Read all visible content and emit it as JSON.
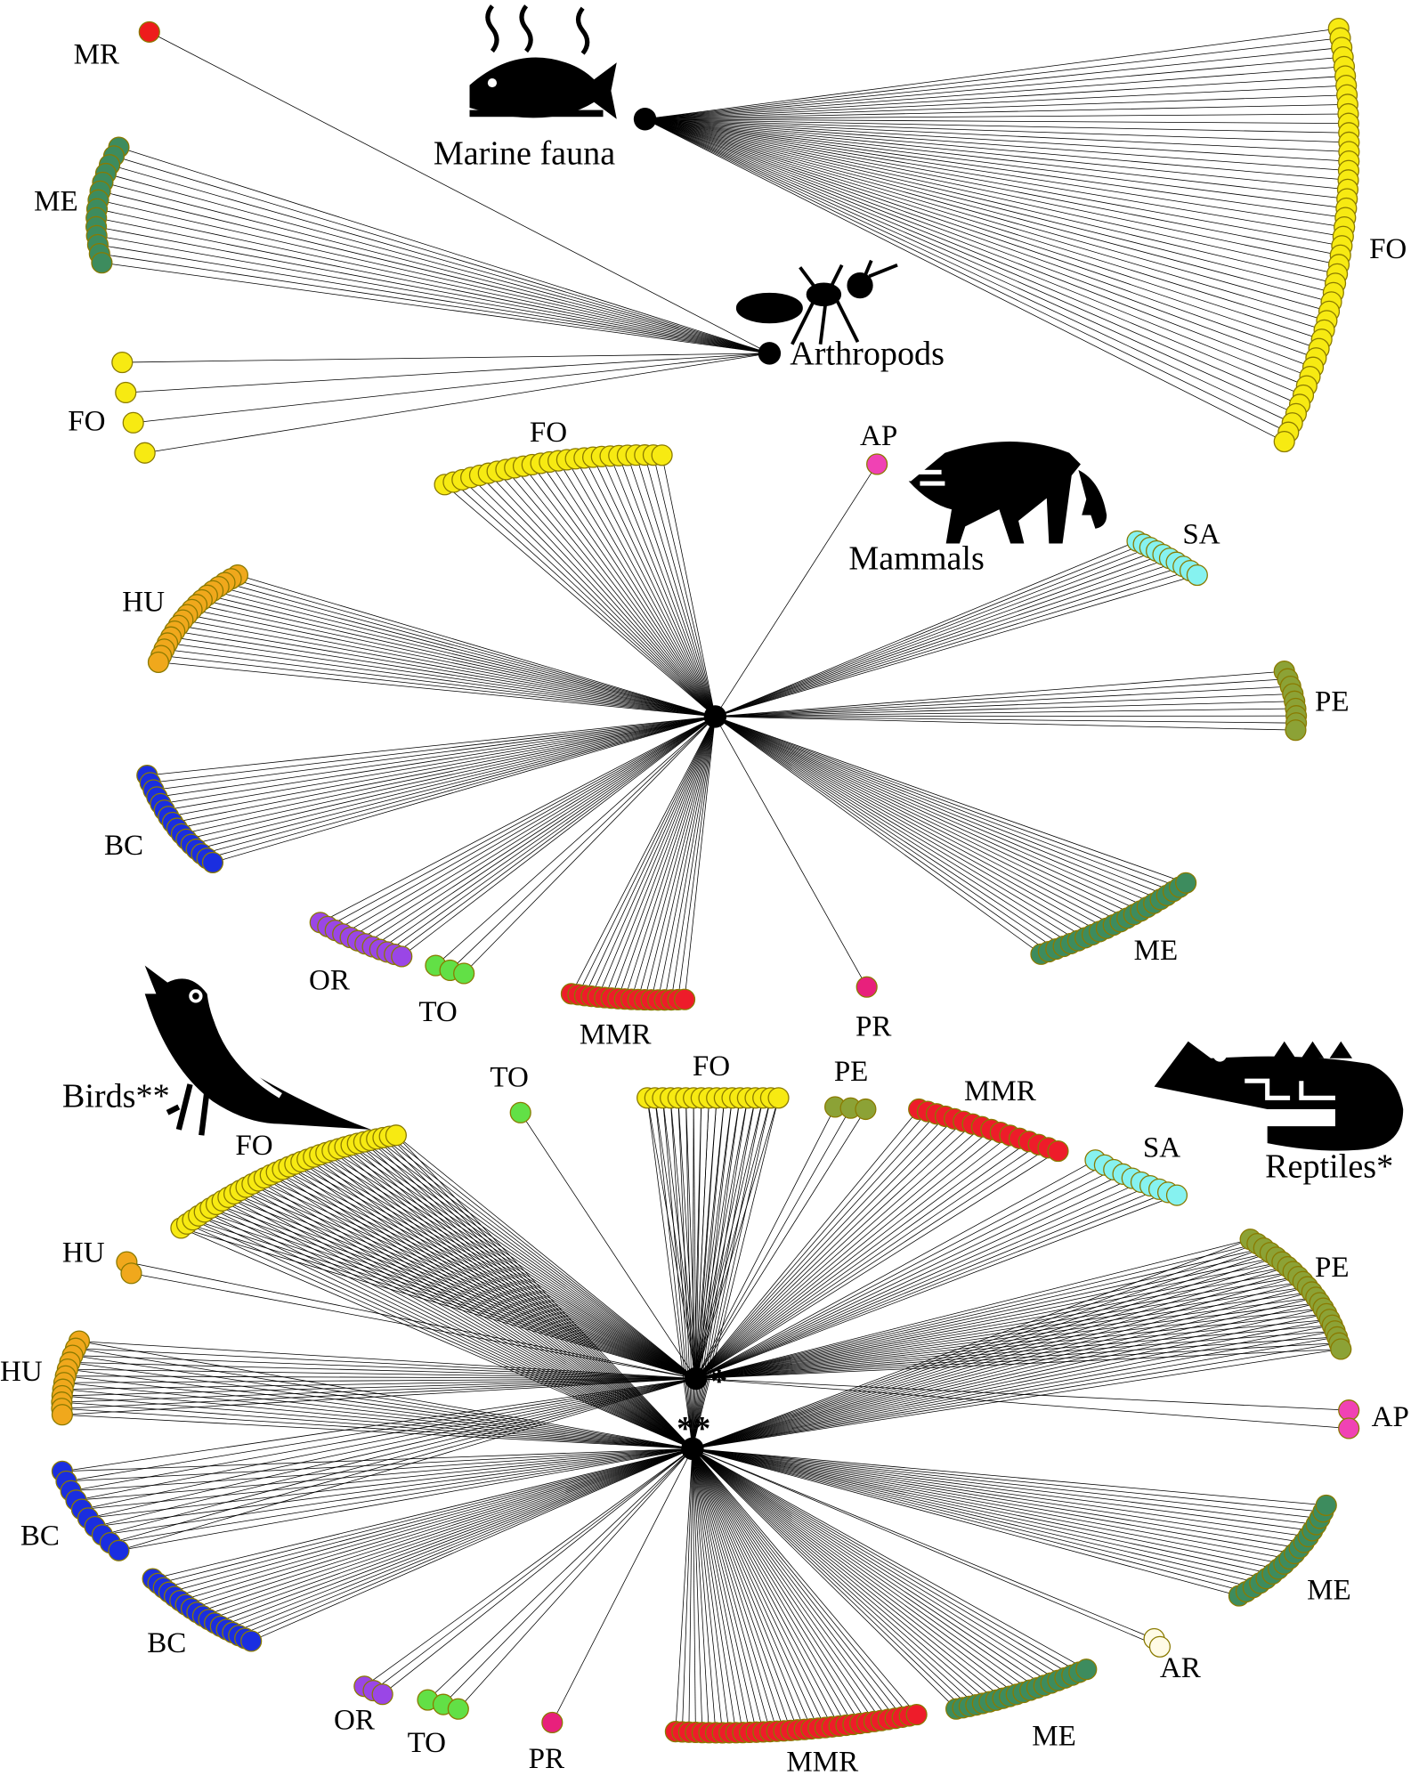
{
  "colors": {
    "FO": "#f7ea12",
    "ME": "#3d8c5e",
    "MR": "#ee1c1c",
    "MMR": "#ee1c2a",
    "HU": "#f0a81c",
    "BC": "#1a2ee0",
    "OR": "#9a46e6",
    "TO": "#62e046",
    "PR": "#e8207c",
    "AP": "#f042b4",
    "SA": "#86f2f0",
    "PE": "#8ca236",
    "AR": "#fffbe6",
    "hub": "#000000"
  },
  "hubs": {
    "marine": {
      "label": "Marine fauna",
      "icon": "fish-icon"
    },
    "arthropods": {
      "label": "Arthropods",
      "icon": "ant-icon"
    },
    "mammals": {
      "label": "Mammals",
      "icon": "raccoon-icon"
    },
    "reptiles": {
      "label": "Reptiles*",
      "marker": "*",
      "icon": "lizard-icon"
    },
    "birds": {
      "label": "Birds**",
      "marker": "**",
      "icon": "bird-icon"
    }
  },
  "groups": [
    {
      "id": "m-fo",
      "hub": "marine",
      "label": "FO",
      "count": 45
    },
    {
      "id": "a-mr",
      "hub": "arthropods",
      "label": "MR",
      "count": 1
    },
    {
      "id": "a-me",
      "hub": "arthropods",
      "label": "ME",
      "count": 14
    },
    {
      "id": "a-fo",
      "hub": "arthropods",
      "label": "FO",
      "count": 4
    },
    {
      "id": "ma-fo",
      "hub": "mammals",
      "label": "FO",
      "count": 26
    },
    {
      "id": "ma-ap",
      "hub": "mammals",
      "label": "AP",
      "count": 1
    },
    {
      "id": "ma-sa",
      "hub": "mammals",
      "label": "SA",
      "count": 10
    },
    {
      "id": "ma-pe",
      "hub": "mammals",
      "label": "PE",
      "count": 9
    },
    {
      "id": "ma-me",
      "hub": "mammals",
      "label": "ME",
      "count": 22
    },
    {
      "id": "ma-pr",
      "hub": "mammals",
      "label": "PR",
      "count": 1
    },
    {
      "id": "ma-mmr",
      "hub": "mammals",
      "label": "MMR",
      "count": 18
    },
    {
      "id": "ma-to",
      "hub": "mammals",
      "label": "TO",
      "count": 3
    },
    {
      "id": "ma-or",
      "hub": "mammals",
      "label": "OR",
      "count": 12
    },
    {
      "id": "ma-bc",
      "hub": "mammals",
      "label": "BC",
      "count": 16
    },
    {
      "id": "ma-hu",
      "hub": "mammals",
      "label": "HU",
      "count": 18
    },
    {
      "id": "b-fo",
      "hub": "birds",
      "label": "FO",
      "count": 36
    },
    {
      "id": "r-hu",
      "hub": "reptiles",
      "label": "HU",
      "count": 2
    },
    {
      "id": "b-hu",
      "hub": "birds",
      "label": "HU",
      "count": 12
    },
    {
      "id": "b-bc1",
      "hub": "birds",
      "label": "BC",
      "count": 10
    },
    {
      "id": "b-bc2",
      "hub": "birds",
      "label": "BC",
      "count": 18
    },
    {
      "id": "b-or",
      "hub": "birds",
      "label": "OR",
      "count": 3
    },
    {
      "id": "b-to",
      "hub": "birds",
      "label": "TO",
      "count": 3
    },
    {
      "id": "b-pr",
      "hub": "birds",
      "label": "PR",
      "count": 1
    },
    {
      "id": "b-mmr",
      "hub": "birds",
      "label": "MMR",
      "count": 36
    },
    {
      "id": "b-me",
      "hub": "birds",
      "label": "ME",
      "count": 20
    },
    {
      "id": "b-ar",
      "hub": "birds",
      "label": "AR",
      "count": 2
    },
    {
      "id": "r-me",
      "hub": "birds",
      "label": "ME",
      "count": 18
    },
    {
      "id": "r-ap",
      "hub": "reptiles",
      "label": "AP",
      "count": 2
    },
    {
      "id": "r-pe",
      "hub": "birds",
      "label": "PE",
      "count": 22
    },
    {
      "id": "r-sa",
      "hub": "reptiles",
      "label": "SA",
      "count": 10
    },
    {
      "id": "r-mmr",
      "hub": "reptiles",
      "label": "MMR",
      "count": 16
    },
    {
      "id": "r-pe2",
      "hub": "reptiles",
      "label": "PE",
      "count": 3
    },
    {
      "id": "r-fo",
      "hub": "birds",
      "label": "FO",
      "count": 18
    },
    {
      "id": "r-to",
      "hub": "reptiles",
      "label": "TO",
      "count": 1
    }
  ]
}
